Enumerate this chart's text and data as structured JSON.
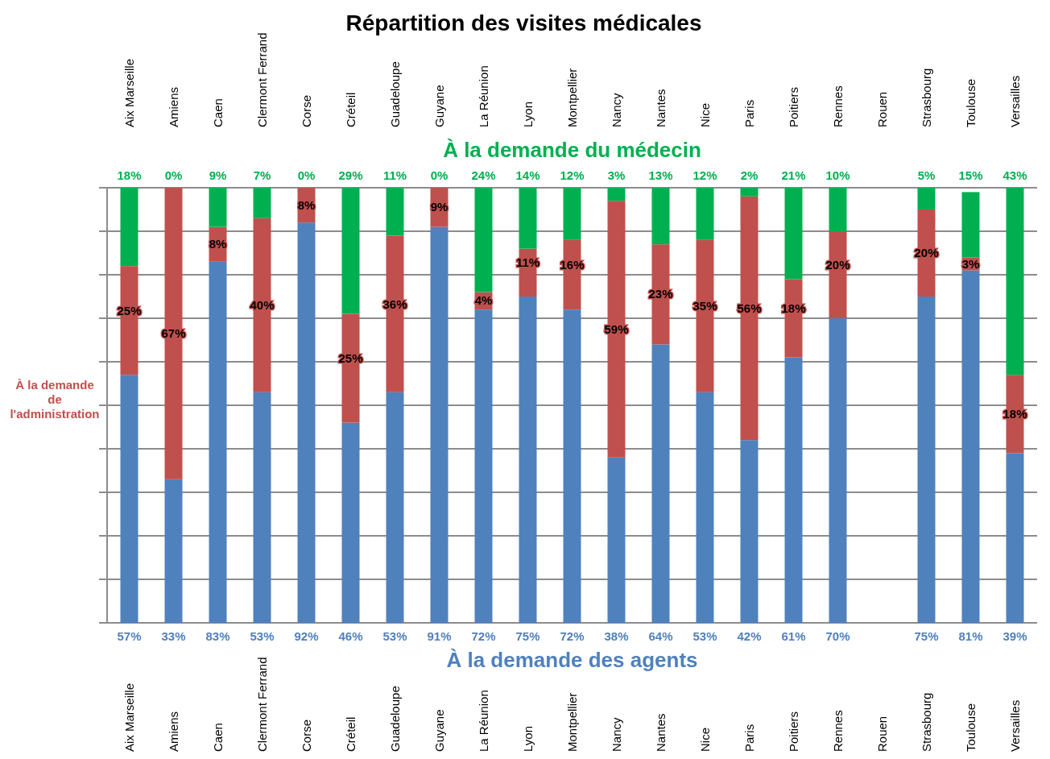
{
  "chart_data": {
    "type": "bar",
    "title": "Répartition des visites médicales",
    "stacked": true,
    "grid": "y",
    "tick_labels": "x",
    "categories": [
      "Aix Marseille",
      "Amiens",
      "Caen",
      "Clermont Ferrand",
      "Corse",
      "Créteil",
      "Guadeloupe",
      "Guyane",
      "La Réunion",
      "Lyon",
      "Montpellier",
      "Nancy",
      "Nantes",
      "Nice",
      "Paris",
      "Poitiers",
      "Rennes",
      "Rouen",
      "Strasbourg",
      "Toulouse",
      "Versailles"
    ],
    "series": [
      {
        "name": "À la demande des agents",
        "color": "#4f81bd",
        "values": [
          57,
          33,
          83,
          53,
          92,
          46,
          53,
          91,
          72,
          75,
          72,
          38,
          64,
          53,
          42,
          61,
          70,
          null,
          75,
          81,
          39
        ],
        "value_labels": [
          "57%",
          "33%",
          "83%",
          "53%",
          "92%",
          "46%",
          "53%",
          "91%",
          "72%",
          "75%",
          "72%",
          "38%",
          "64%",
          "53%",
          "42%",
          "61%",
          "70%",
          null,
          "75%",
          "81%",
          "39%"
        ]
      },
      {
        "name": "À la demande de l'administration",
        "color": "#c0504d",
        "values": [
          25,
          67,
          8,
          40,
          8,
          25,
          36,
          9,
          4,
          11,
          16,
          59,
          23,
          35,
          56,
          18,
          20,
          null,
          20,
          3,
          18
        ],
        "value_labels": [
          "25%",
          "67%",
          "8%",
          "40%",
          "8%",
          "25%",
          "36%",
          "9%",
          "4%",
          "11%",
          "16%",
          "59%",
          "23%",
          "35%",
          "56%",
          "18%",
          "20%",
          null,
          "20%",
          "3%",
          "18%"
        ]
      },
      {
        "name": "À la demande du médecin",
        "color": "#00b050",
        "values": [
          18,
          0,
          9,
          7,
          0,
          29,
          11,
          0,
          24,
          14,
          12,
          3,
          13,
          12,
          2,
          21,
          10,
          null,
          5,
          15,
          43
        ],
        "value_labels": [
          "18%",
          "0%",
          "9%",
          "7%",
          "0%",
          "29%",
          "11%",
          "0%",
          "24%",
          "14%",
          "12%",
          "3%",
          "13%",
          "12%",
          "2%",
          "21%",
          "10%",
          null,
          "5%",
          "15%",
          "43%"
        ]
      }
    ]
  }
}
